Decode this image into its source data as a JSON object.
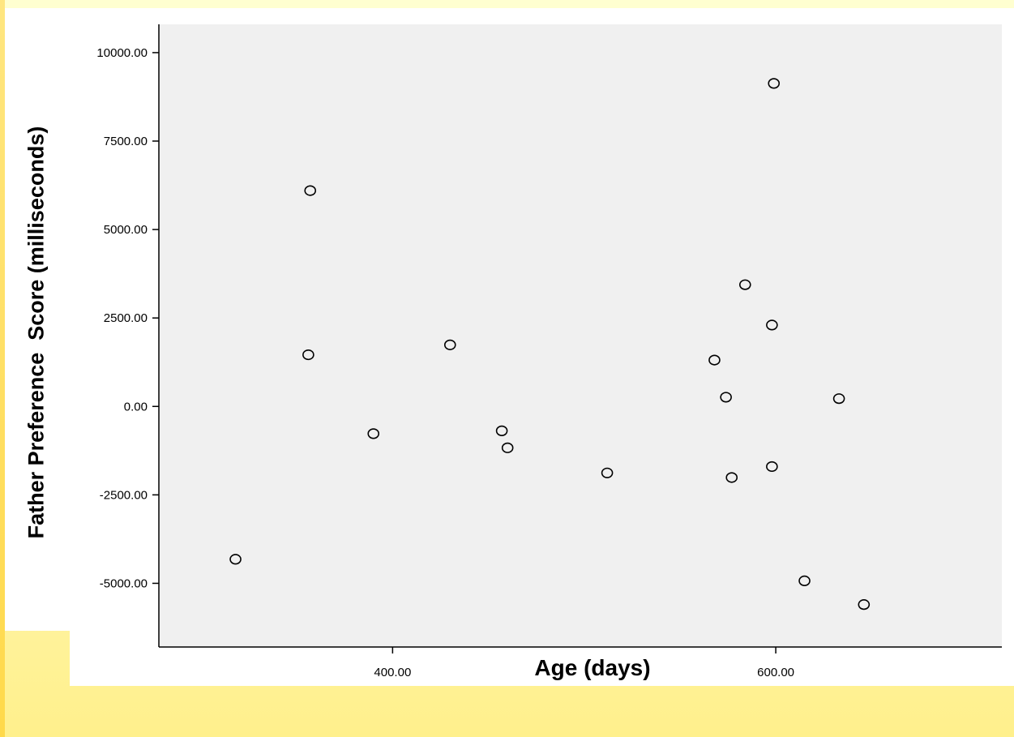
{
  "chart_data": {
    "type": "scatter",
    "title": "",
    "xlabel": "Age (days)",
    "ylabel": "Father Preference  Score (milliseconds)",
    "xlim": [
      278,
      718
    ],
    "ylim": [
      -6800,
      10800
    ],
    "x_ticks": [
      400,
      600
    ],
    "x_tick_labels": [
      "400.00",
      "600.00"
    ],
    "y_ticks": [
      10000,
      7500,
      5000,
      2500,
      0,
      -2500,
      -5000
    ],
    "y_tick_labels": [
      "10000.00",
      "7500.00",
      "5000.00",
      "2500.00",
      "0.00",
      "-2500.00",
      "-5000.00"
    ],
    "grid": false,
    "plot_background": "#f0f0f0",
    "marker": "open-circle",
    "points": [
      {
        "x": 318,
        "y": -4320
      },
      {
        "x": 357,
        "y": 6100
      },
      {
        "x": 356,
        "y": 1460
      },
      {
        "x": 390,
        "y": -770
      },
      {
        "x": 430,
        "y": 1740
      },
      {
        "x": 457,
        "y": -690
      },
      {
        "x": 460,
        "y": -1170
      },
      {
        "x": 512,
        "y": -1880
      },
      {
        "x": 568,
        "y": 1310
      },
      {
        "x": 574,
        "y": 260
      },
      {
        "x": 577,
        "y": -2010
      },
      {
        "x": 584,
        "y": 3440
      },
      {
        "x": 598,
        "y": 2300
      },
      {
        "x": 598,
        "y": -1700
      },
      {
        "x": 599,
        "y": 9130
      },
      {
        "x": 615,
        "y": -4930
      },
      {
        "x": 633,
        "y": 220
      },
      {
        "x": 646,
        "y": -5600
      }
    ]
  }
}
